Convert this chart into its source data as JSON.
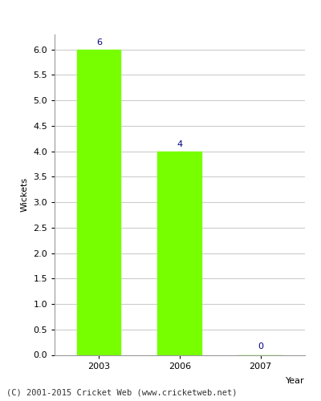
{
  "categories": [
    "2003",
    "2006",
    "2007"
  ],
  "values": [
    6,
    4,
    0
  ],
  "bar_color": "#77ff00",
  "bar_edge_color": "#77ff00",
  "xlabel": "Year",
  "ylabel": "Wickets",
  "ylim": [
    0,
    6.3
  ],
  "yticks": [
    0.0,
    0.5,
    1.0,
    1.5,
    2.0,
    2.5,
    3.0,
    3.5,
    4.0,
    4.5,
    5.0,
    5.5,
    6.0
  ],
  "annotation_color": "#000080",
  "annotation_fontsize": 8,
  "axis_label_fontsize": 8,
  "tick_fontsize": 8,
  "footer_text": "(C) 2001-2015 Cricket Web (www.cricketweb.net)",
  "footer_fontsize": 7.5,
  "background_color": "#ffffff",
  "plot_bg_color": "#ffffff",
  "grid_color": "#cccccc",
  "bar_width": 0.55
}
